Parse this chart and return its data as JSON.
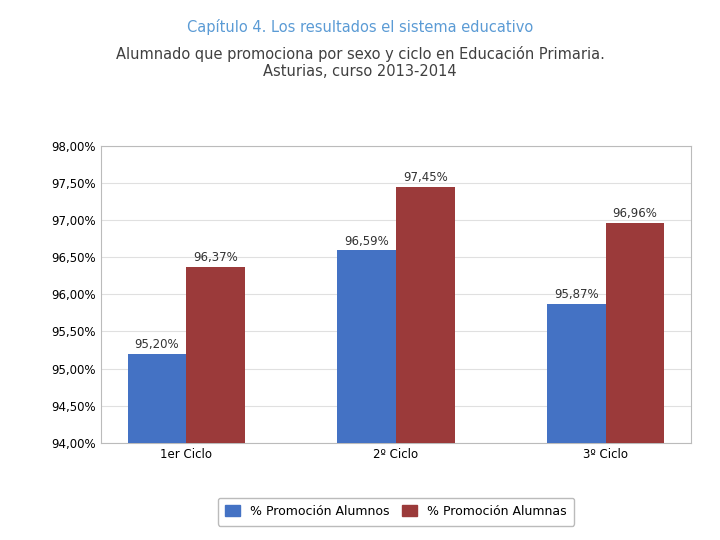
{
  "title_line1": "Capítulo 4. Los resultados el sistema educativo",
  "title_line2": "Alumnado que promociona por sexo y ciclo en Educación Primaria.\nAsturias, curso 2013-2014",
  "categories": [
    "1er Ciclo",
    "2º Ciclo",
    "3º Ciclo"
  ],
  "alumnos": [
    95.2,
    96.59,
    95.87
  ],
  "alumnas": [
    96.37,
    97.45,
    96.96
  ],
  "color_alumnos": "#4472C4",
  "color_alumnas": "#9B3A3A",
  "ylim": [
    94.0,
    98.0
  ],
  "yticks": [
    94.0,
    94.5,
    95.0,
    95.5,
    96.0,
    96.5,
    97.0,
    97.5,
    98.0
  ],
  "legend_label_alumnos": "% Promoción Alumnos",
  "legend_label_alumnas": "% Promoción Alumnas",
  "title_color1": "#5B9BD5",
  "title_color2": "#404040",
  "bar_width": 0.28,
  "label_fontsize": 8.5,
  "tick_fontsize": 8.5,
  "legend_fontsize": 9,
  "background_color": "#FFFFFF",
  "chart_bg_color": "#FFFFFF",
  "border_color": "#BBBBBB",
  "grid_color": "#E0E0E0"
}
